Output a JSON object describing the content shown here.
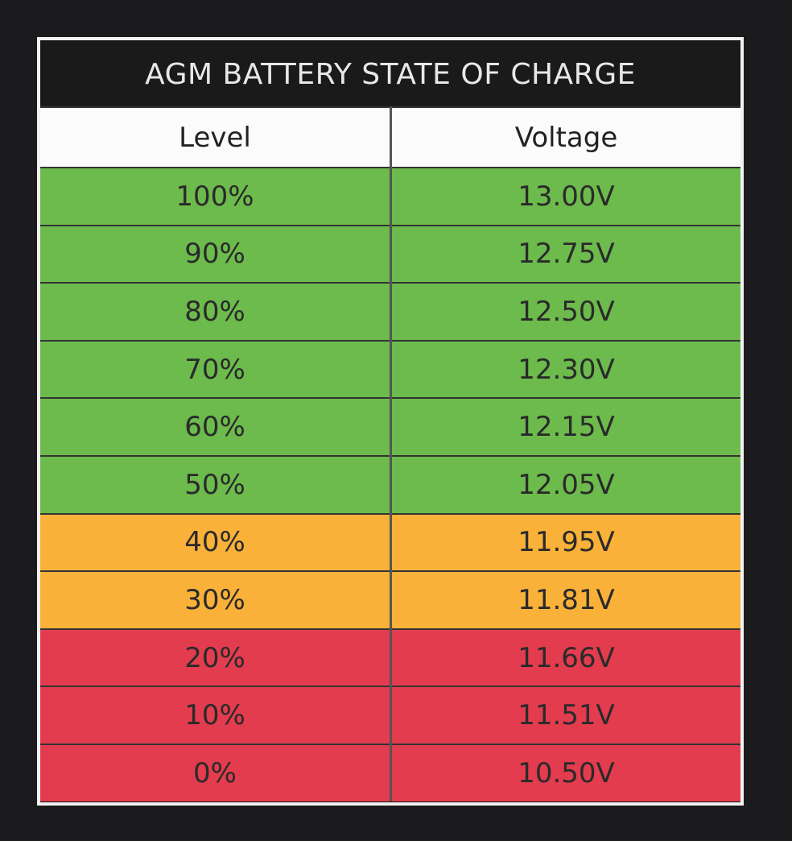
{
  "header": {
    "title": "AGM BATTERY STATE OF CHARGE"
  },
  "table": {
    "columns": [
      "Level",
      "Voltage"
    ],
    "rows": [
      [
        "100%",
        "13.00V"
      ],
      [
        "90%",
        "12.75V"
      ],
      [
        "80%",
        "12.50V"
      ],
      [
        "70%",
        "12.30V"
      ],
      [
        "60%",
        "12.15V"
      ],
      [
        "50%",
        "12.05V"
      ],
      [
        "40%",
        "11.95V"
      ],
      [
        "30%",
        "11.81V"
      ],
      [
        "20%",
        "11.66V"
      ],
      [
        "10%",
        "11.51V"
      ],
      [
        "0%",
        "10.50V"
      ]
    ],
    "row_colors": [
      "#6cbb4c",
      "#6cbb4c",
      "#6cbb4c",
      "#6cbb4c",
      "#6cbb4c",
      "#6cbb4c",
      "#f9b13a",
      "#f9b13a",
      "#e23c4e",
      "#e23c4e",
      "#e23c4e"
    ]
  }
}
